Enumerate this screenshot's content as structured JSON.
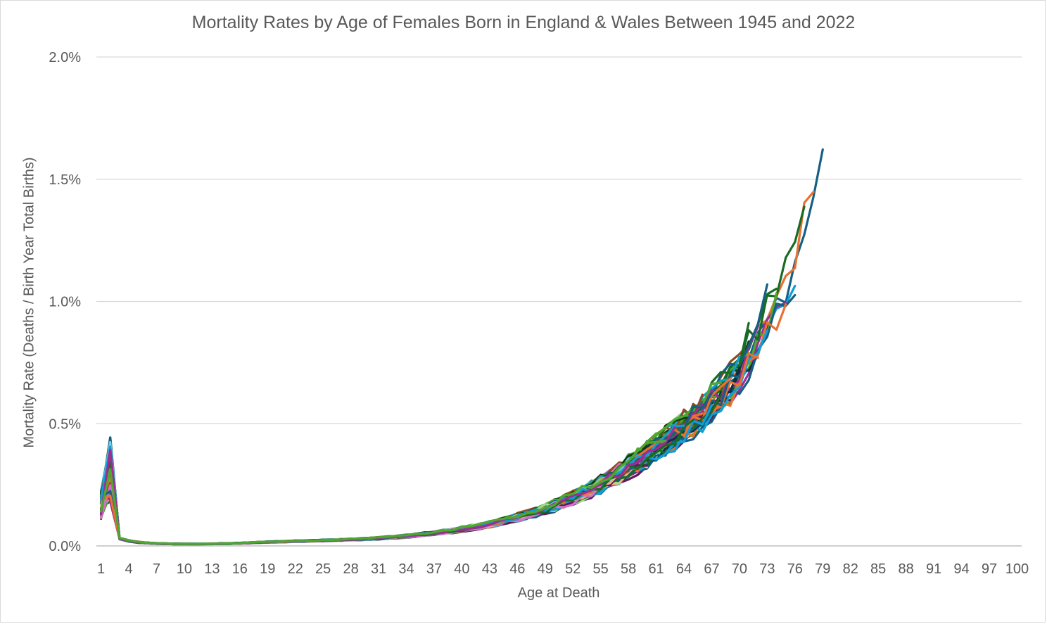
{
  "chart_data": {
    "type": "line",
    "title": "Mortality Rates by Age of Females Born in England & Wales Between 1945 and 2022",
    "xlabel": "Age at Death",
    "ylabel": "Mortality Rate (Deaths / Birth Year Total Births)",
    "x_tick_labels": [
      "1",
      "4",
      "7",
      "10",
      "13",
      "16",
      "19",
      "22",
      "25",
      "28",
      "31",
      "34",
      "37",
      "40",
      "43",
      "46",
      "49",
      "52",
      "55",
      "58",
      "61",
      "64",
      "67",
      "70",
      "73",
      "76",
      "79",
      "82",
      "85",
      "88",
      "91",
      "94",
      "97",
      "100"
    ],
    "y_tick_labels": [
      "0.0%",
      "0.5%",
      "1.0%",
      "1.5%",
      "2.0%"
    ],
    "xlim": [
      1,
      100
    ],
    "ylim": [
      0,
      2.0
    ],
    "y_unit": "%",
    "grid": "horizontal",
    "series_count": 78,
    "age_curve": {
      "ages": [
        1,
        2,
        3,
        4,
        5,
        6,
        7,
        8,
        9,
        10,
        12,
        14,
        16,
        18,
        20,
        22,
        25,
        28,
        31,
        34,
        37,
        40,
        43,
        46,
        49,
        52,
        55,
        58,
        61,
        64,
        67,
        70,
        73,
        76,
        79
      ],
      "rate_pct": [
        0.17,
        0.3,
        0.03,
        0.02,
        0.015,
        0.012,
        0.01,
        0.009,
        0.008,
        0.008,
        0.008,
        0.009,
        0.011,
        0.014,
        0.017,
        0.019,
        0.022,
        0.026,
        0.031,
        0.04,
        0.052,
        0.068,
        0.088,
        0.116,
        0.15,
        0.195,
        0.25,
        0.32,
        0.4,
        0.48,
        0.58,
        0.72,
        0.95,
        1.2,
        1.65
      ]
    },
    "series_colors": [
      "#156082",
      "#E97132",
      "#196B24",
      "#0F9ED5",
      "#A02B93",
      "#4EA72E",
      "#0B3041",
      "#8E4A1E",
      "#0E3C14",
      "#085E80",
      "#5F1A58",
      "#2F6A1C",
      "#7DC6EC",
      "#F4B183",
      "#83C87B",
      "#D86ECC",
      "#A4D98C",
      "#3F8FB5"
    ],
    "max_age_by_series_group": [
      79,
      78,
      77,
      76,
      75,
      74,
      73,
      72,
      71,
      70,
      69,
      68,
      67,
      66,
      65,
      64,
      63,
      62
    ]
  }
}
